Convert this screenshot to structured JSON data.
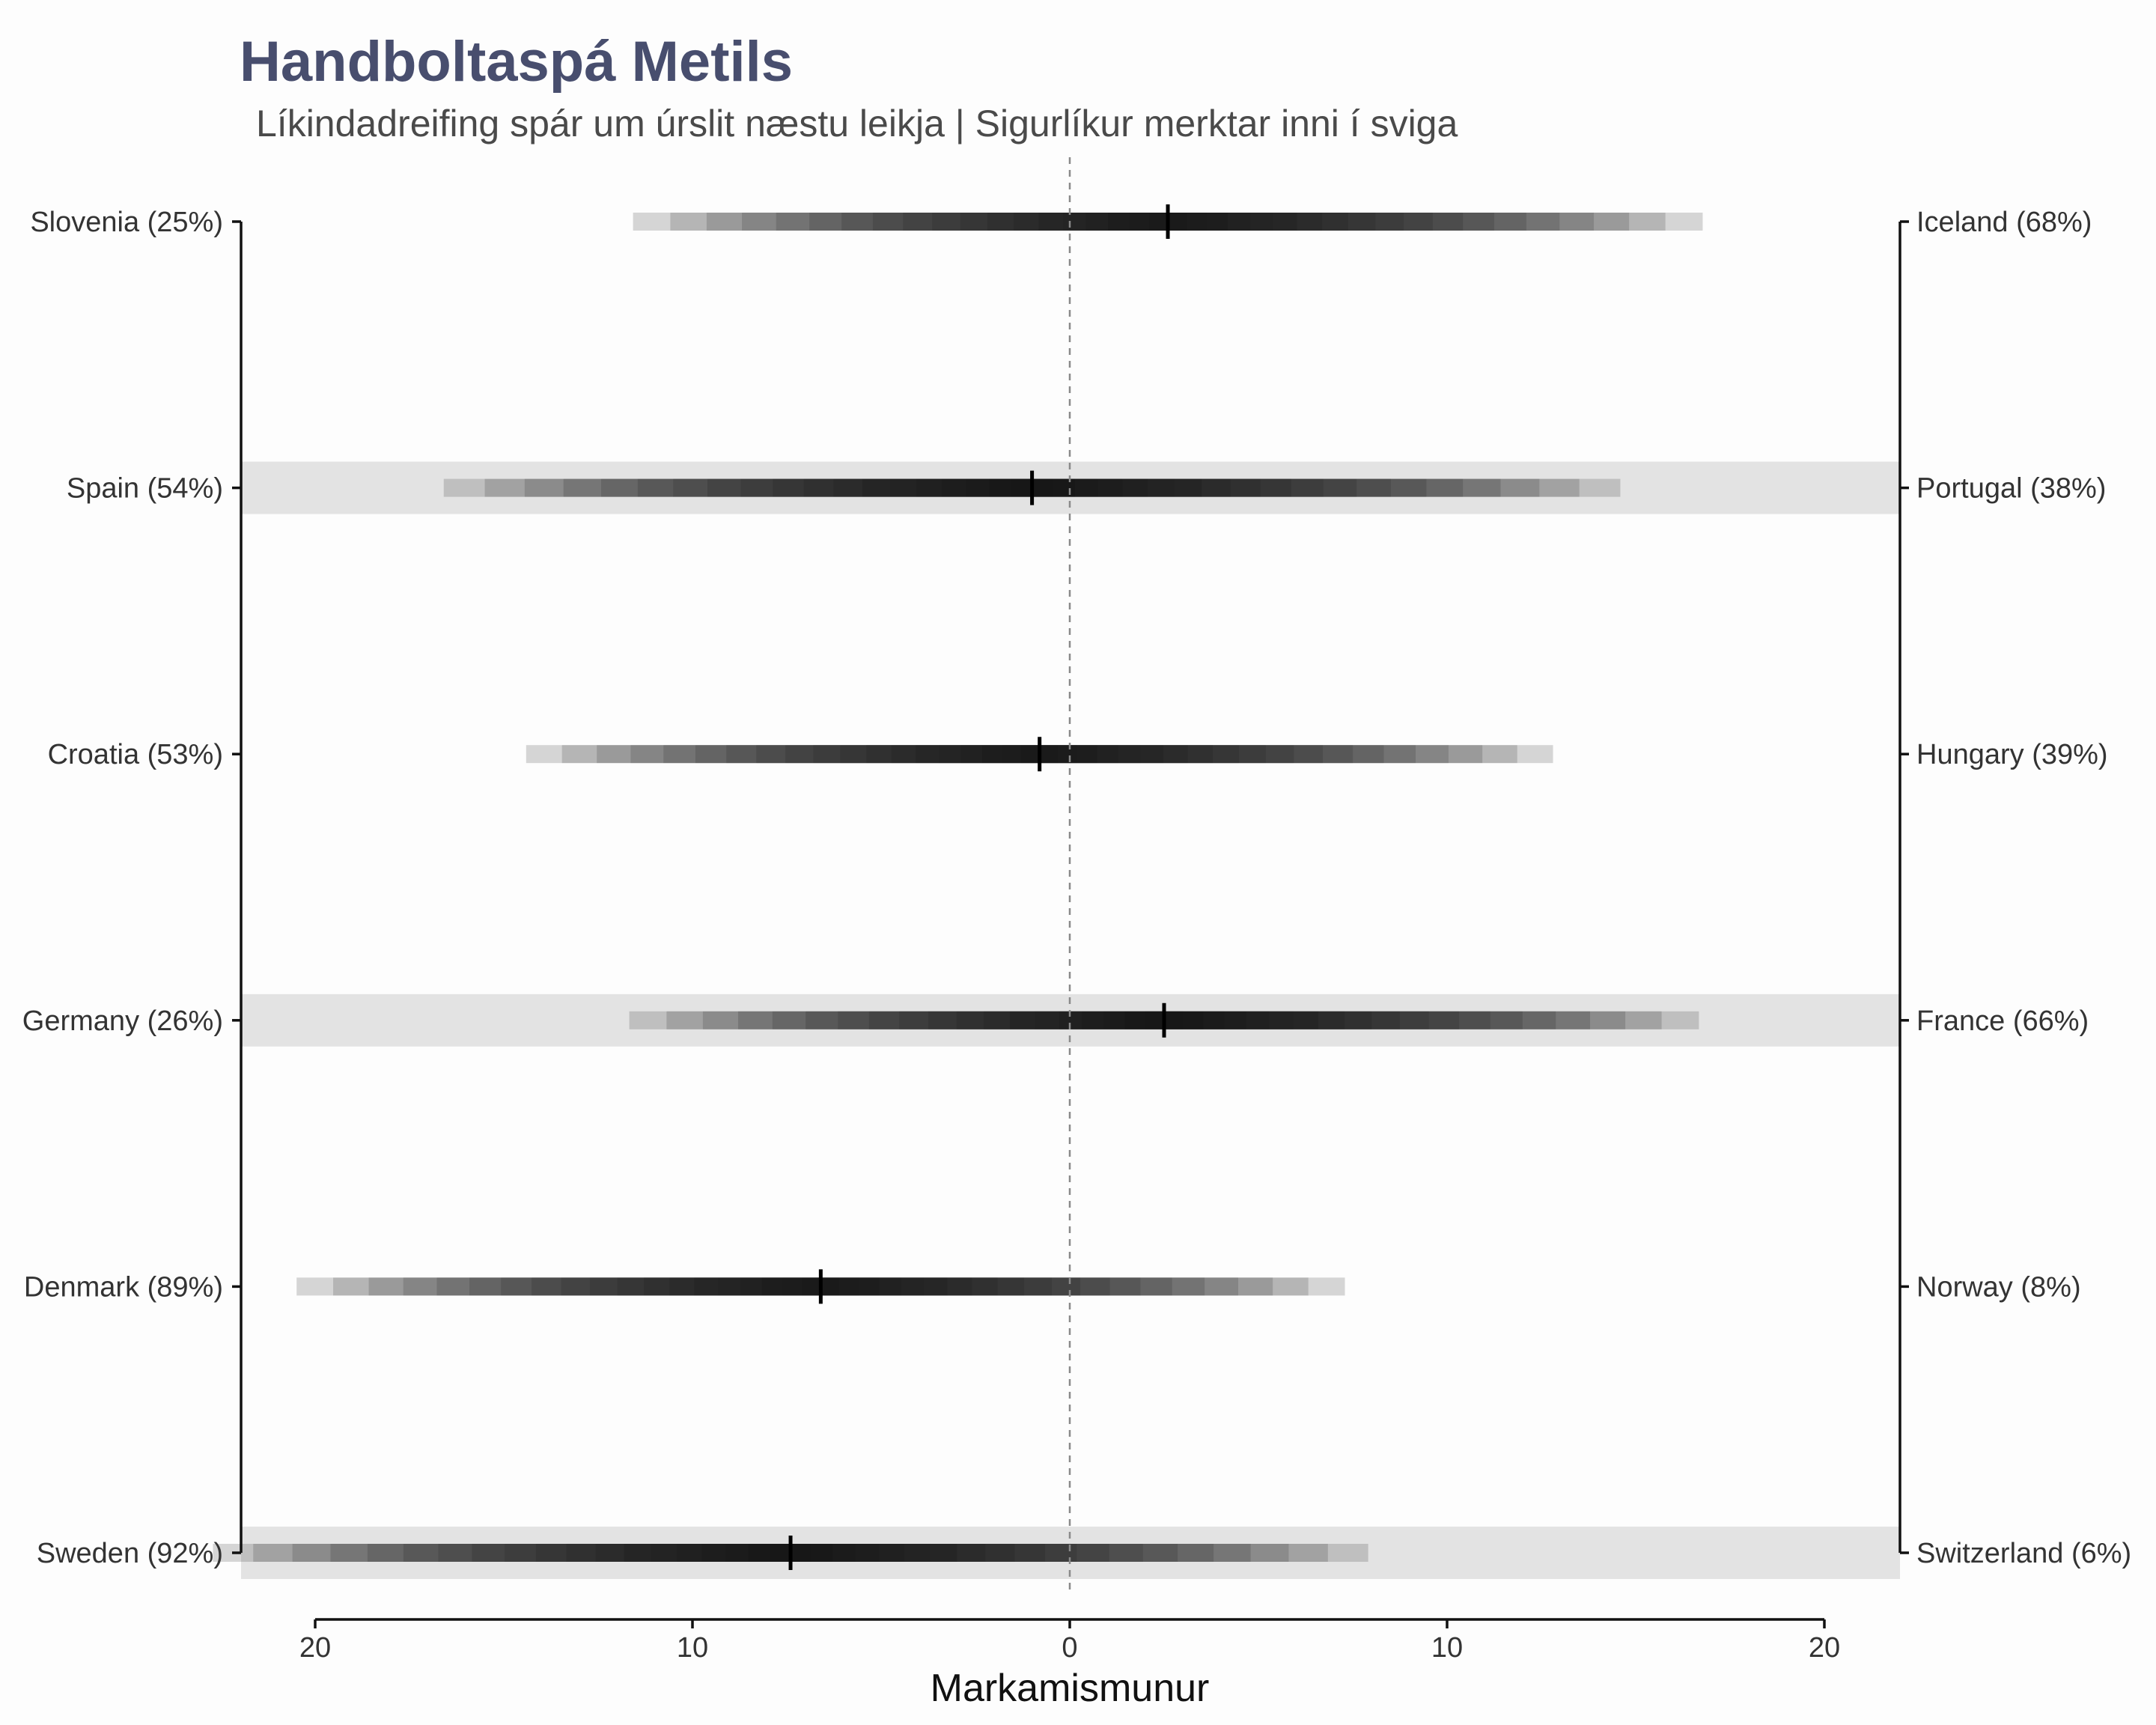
{
  "title": "Handboltaspá Metils",
  "subtitle": "Líkindadreifing spár um úrslit næstu leikja | Sigurlíkur merktar inni í sviga",
  "chart_data": {
    "type": "interval-density",
    "xlabel": "Markamismunur",
    "xlim": [
      -20,
      20
    ],
    "x_ticks": [
      -20,
      -10,
      0,
      10,
      20
    ],
    "x_tick_labels": [
      "20",
      "10",
      "0",
      "10",
      "20"
    ],
    "reference_line_x": 0,
    "grid": false,
    "matches": [
      {
        "left": "Slovenia (25%)",
        "right": "Iceland (68%)",
        "median": 2.6,
        "sd": 5.0,
        "shaded": false
      },
      {
        "left": "Spain (54%)",
        "right": "Portugal (38%)",
        "median": -1.0,
        "sd": 5.5,
        "shaded": true
      },
      {
        "left": "Croatia (53%)",
        "right": "Hungary (39%)",
        "median": -0.8,
        "sd": 4.8,
        "shaded": false
      },
      {
        "left": "Germany (26%)",
        "right": "France (66%)",
        "median": 2.5,
        "sd": 5.0,
        "shaded": true
      },
      {
        "left": "Denmark (89%)",
        "right": "Norway (8%)",
        "median": -6.6,
        "sd": 4.9,
        "shaded": false
      },
      {
        "left": "Sweden (92%)",
        "right": "Switzerland (6%)",
        "median": -7.4,
        "sd": 5.4,
        "shaded": true
      }
    ]
  }
}
